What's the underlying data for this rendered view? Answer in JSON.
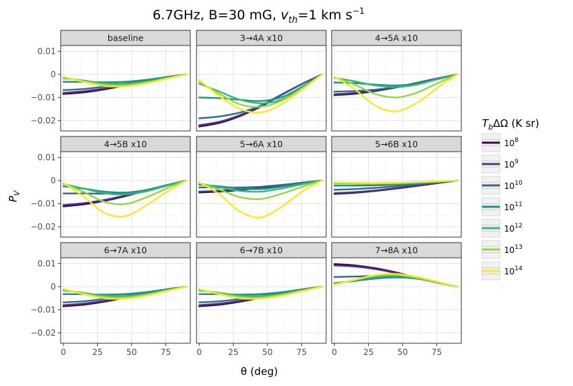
{
  "chart_data": {
    "type": "line",
    "title": "6.7GHz, B=30 mG, v_th=1 km s^-1",
    "title_parts": {
      "main": "6.7GHz, B=30 mG, ",
      "v": "v",
      "th": "th",
      "eq": "=1 km s",
      "exp": "−1"
    },
    "xlabel": "θ (deg)",
    "ylabel": "P_V",
    "ylabel_parts": {
      "base": "P",
      "sub": "V"
    },
    "xlim": [
      -2,
      93
    ],
    "ylim": [
      -0.0245,
      0.0125
    ],
    "x_ticks": [
      0,
      25,
      50,
      75
    ],
    "x_tick_labels": [
      "0",
      "25",
      "50",
      "75"
    ],
    "y_ticks": [
      0.01,
      0,
      -0.01,
      -0.02
    ],
    "y_tick_labels": [
      "0.01",
      "0",
      "−0.01",
      "−0.02"
    ],
    "grid": true,
    "legend": {
      "position": "right",
      "title_parts": {
        "T": "T",
        "b": "b",
        "rest": "ΔΩ (K sr)"
      },
      "entries": [
        {
          "base": "10",
          "exp": "8",
          "color": "#440154"
        },
        {
          "base": "10",
          "exp": "9",
          "color": "#443983"
        },
        {
          "base": "10",
          "exp": "10",
          "color": "#31688e"
        },
        {
          "base": "10",
          "exp": "11",
          "color": "#21918c"
        },
        {
          "base": "10",
          "exp": "12",
          "color": "#35b779"
        },
        {
          "base": "10",
          "exp": "13",
          "color": "#90d743"
        },
        {
          "base": "10",
          "exp": "14",
          "color": "#fde725"
        }
      ]
    },
    "series_names": [
      "1e8",
      "1e9",
      "1e10",
      "1e11",
      "1e12",
      "1e13",
      "1e14"
    ],
    "x": [
      0,
      15,
      30,
      45,
      60,
      75,
      90
    ],
    "panels": [
      {
        "label": "baseline",
        "series": [
          [
            -0.0085,
            -0.0078,
            -0.0065,
            -0.0048,
            -0.0031,
            -0.0014,
            0
          ],
          [
            -0.008,
            -0.0073,
            -0.0061,
            -0.0045,
            -0.0029,
            -0.0013,
            0
          ],
          [
            -0.0068,
            -0.0063,
            -0.0053,
            -0.004,
            -0.0026,
            -0.0012,
            0
          ],
          [
            -0.0032,
            -0.0033,
            -0.0034,
            -0.0032,
            -0.0024,
            -0.0012,
            0
          ],
          [
            -0.0016,
            -0.0027,
            -0.0038,
            -0.004,
            -0.0032,
            -0.0016,
            0
          ],
          [
            -0.0012,
            -0.003,
            -0.0044,
            -0.0047,
            -0.0036,
            -0.0018,
            0
          ],
          [
            -0.001,
            -0.0033,
            -0.005,
            -0.0052,
            -0.004,
            -0.002,
            0
          ]
        ]
      },
      {
        "label": "3→4A x10",
        "series": [
          [
            -0.0226,
            -0.021,
            -0.018,
            -0.014,
            -0.009,
            -0.0043,
            0
          ],
          [
            -0.022,
            -0.0205,
            -0.0176,
            -0.0136,
            -0.0088,
            -0.0042,
            0
          ],
          [
            -0.019,
            -0.0182,
            -0.0165,
            -0.0135,
            -0.009,
            -0.0043,
            0
          ],
          [
            -0.01,
            -0.0103,
            -0.011,
            -0.0115,
            -0.01,
            -0.0055,
            0
          ],
          [
            -0.004,
            -0.0075,
            -0.011,
            -0.0125,
            -0.011,
            -0.006,
            0
          ],
          [
            -0.003,
            -0.0085,
            -0.013,
            -0.014,
            -0.0115,
            -0.0062,
            0
          ],
          [
            -0.0025,
            -0.0095,
            -0.015,
            -0.0165,
            -0.013,
            -0.0068,
            0
          ]
        ]
      },
      {
        "label": "4→5A x10",
        "series": [
          [
            -0.009,
            -0.0084,
            -0.0072,
            -0.0057,
            -0.0039,
            -0.0019,
            0
          ],
          [
            -0.0086,
            -0.008,
            -0.0069,
            -0.0055,
            -0.0037,
            -0.0018,
            0
          ],
          [
            -0.0075,
            -0.0072,
            -0.0066,
            -0.0055,
            -0.0038,
            -0.0019,
            0
          ],
          [
            -0.0035,
            -0.0038,
            -0.0044,
            -0.0048,
            -0.004,
            -0.0022,
            0
          ],
          [
            -0.0015,
            -0.003,
            -0.0048,
            -0.0055,
            -0.0045,
            -0.0022,
            0
          ],
          [
            -0.0012,
            -0.0045,
            -0.0085,
            -0.01,
            -0.008,
            -0.004,
            0
          ],
          [
            -0.001,
            -0.0065,
            -0.0135,
            -0.016,
            -0.0125,
            -0.006,
            0
          ]
        ]
      },
      {
        "label": "4→5B x10",
        "series": [
          [
            -0.0112,
            -0.0103,
            -0.0088,
            -0.0068,
            -0.0045,
            -0.0022,
            0
          ],
          [
            -0.0106,
            -0.0098,
            -0.0084,
            -0.0065,
            -0.0043,
            -0.0021,
            0
          ],
          [
            -0.0056,
            -0.0056,
            -0.0057,
            -0.0055,
            -0.0042,
            -0.0021,
            0
          ],
          [
            -0.0025,
            -0.0035,
            -0.0048,
            -0.0052,
            -0.0042,
            -0.0021,
            0
          ],
          [
            -0.0015,
            -0.0035,
            -0.0055,
            -0.006,
            -0.0048,
            -0.0024,
            0
          ],
          [
            -0.0012,
            -0.005,
            -0.0092,
            -0.0102,
            -0.0075,
            -0.0036,
            0
          ],
          [
            -0.001,
            -0.007,
            -0.014,
            -0.0155,
            -0.011,
            -0.0052,
            0
          ]
        ]
      },
      {
        "label": "5→6A x10",
        "series": [
          [
            -0.0052,
            -0.0048,
            -0.0041,
            -0.0032,
            -0.0021,
            -0.001,
            0
          ],
          [
            -0.0048,
            -0.0044,
            -0.0038,
            -0.003,
            -0.002,
            -0.001,
            0
          ],
          [
            -0.003,
            -0.003,
            -0.003,
            -0.0027,
            -0.0019,
            -0.001,
            0
          ],
          [
            -0.0018,
            -0.0025,
            -0.0035,
            -0.0037,
            -0.0027,
            -0.0013,
            0
          ],
          [
            -0.0012,
            -0.003,
            -0.0045,
            -0.0048,
            -0.0035,
            -0.0017,
            0
          ],
          [
            -0.001,
            -0.004,
            -0.0072,
            -0.008,
            -0.0058,
            -0.0028,
            0
          ],
          [
            -0.0008,
            -0.006,
            -0.0135,
            -0.016,
            -0.0115,
            -0.005,
            0
          ]
        ]
      },
      {
        "label": "5→6B x10",
        "series": [
          [
            -0.0058,
            -0.0053,
            -0.0045,
            -0.0035,
            -0.0024,
            -0.0012,
            0
          ],
          [
            -0.0055,
            -0.005,
            -0.0043,
            -0.0033,
            -0.0023,
            -0.0011,
            0
          ],
          [
            -0.004,
            -0.0037,
            -0.0032,
            -0.0025,
            -0.0017,
            -0.0009,
            0
          ],
          [
            -0.0022,
            -0.0022,
            -0.0021,
            -0.0018,
            -0.0013,
            -0.0007,
            0
          ],
          [
            -0.0012,
            -0.0013,
            -0.0014,
            -0.0013,
            -0.001,
            -0.0005,
            0
          ],
          [
            -0.001,
            -0.0011,
            -0.0012,
            -0.0011,
            -0.0008,
            -0.0004,
            0
          ],
          [
            -0.0008,
            -0.001,
            -0.0011,
            -0.001,
            -0.0007,
            -0.0004,
            0
          ]
        ]
      },
      {
        "label": "6→7A x10",
        "series": [
          [
            -0.0085,
            -0.0078,
            -0.0065,
            -0.0048,
            -0.0031,
            -0.0014,
            0
          ],
          [
            -0.008,
            -0.0073,
            -0.0061,
            -0.0045,
            -0.0029,
            -0.0013,
            0
          ],
          [
            -0.0068,
            -0.0063,
            -0.0053,
            -0.004,
            -0.0026,
            -0.0012,
            0
          ],
          [
            -0.0032,
            -0.0033,
            -0.0034,
            -0.0032,
            -0.0024,
            -0.0012,
            0
          ],
          [
            -0.0016,
            -0.0027,
            -0.0038,
            -0.004,
            -0.0032,
            -0.0016,
            0
          ],
          [
            -0.0012,
            -0.003,
            -0.0044,
            -0.0047,
            -0.0036,
            -0.0018,
            0
          ],
          [
            -0.001,
            -0.0033,
            -0.005,
            -0.0052,
            -0.004,
            -0.002,
            0
          ]
        ]
      },
      {
        "label": "6→7B x10",
        "series": [
          [
            -0.0085,
            -0.0078,
            -0.0065,
            -0.0048,
            -0.0031,
            -0.0014,
            0
          ],
          [
            -0.008,
            -0.0073,
            -0.0061,
            -0.0045,
            -0.0029,
            -0.0013,
            0
          ],
          [
            -0.0068,
            -0.0063,
            -0.0053,
            -0.004,
            -0.0026,
            -0.0012,
            0
          ],
          [
            -0.0032,
            -0.0033,
            -0.0034,
            -0.0032,
            -0.0024,
            -0.0012,
            0
          ],
          [
            -0.0016,
            -0.0027,
            -0.0038,
            -0.004,
            -0.0032,
            -0.0016,
            0
          ],
          [
            -0.0012,
            -0.003,
            -0.0044,
            -0.0047,
            -0.0036,
            -0.0018,
            0
          ],
          [
            -0.001,
            -0.0033,
            -0.005,
            -0.0052,
            -0.004,
            -0.002,
            0
          ]
        ]
      },
      {
        "label": "7→8A x10",
        "series": [
          [
            0.0098,
            0.0092,
            0.008,
            0.0062,
            0.004,
            0.0019,
            0
          ],
          [
            0.0092,
            0.0087,
            0.0076,
            0.0059,
            0.0038,
            0.0018,
            0
          ],
          [
            0.0042,
            0.0044,
            0.0046,
            0.0045,
            0.0037,
            0.002,
            0
          ],
          [
            0.0015,
            0.0025,
            0.0035,
            0.004,
            0.0035,
            0.002,
            0
          ],
          [
            0.0012,
            0.0028,
            0.0042,
            0.0046,
            0.0036,
            0.0018,
            0
          ],
          [
            0.001,
            0.003,
            0.0048,
            0.0052,
            0.004,
            0.002,
            0
          ],
          [
            0.0008,
            0.003,
            0.005,
            0.0055,
            0.0043,
            0.0022,
            0
          ]
        ]
      }
    ]
  }
}
